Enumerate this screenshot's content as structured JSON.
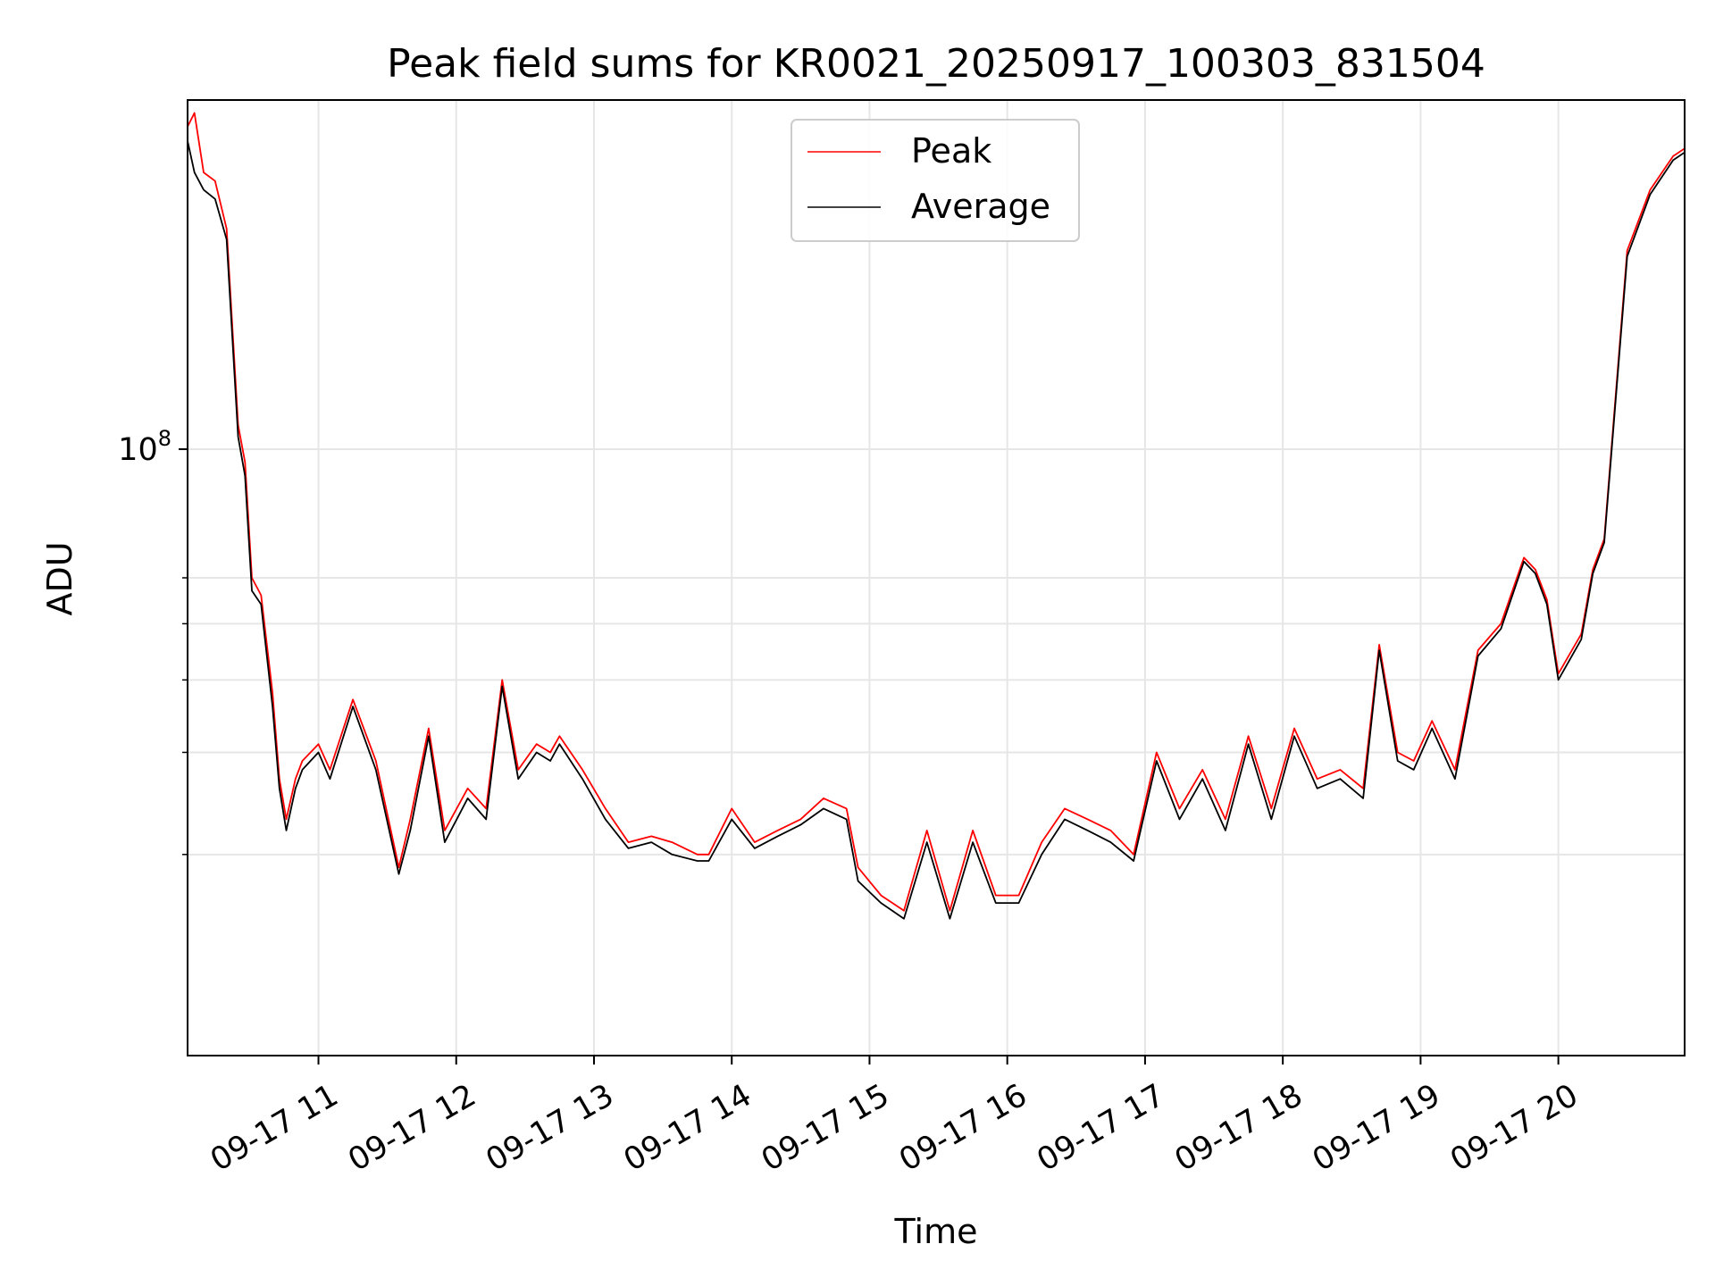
{
  "chart_data": {
    "type": "line",
    "title": "Peak field sums for KR0021_20250917_100303_831504",
    "xlabel": "Time",
    "ylabel": "ADU",
    "yscale": "log",
    "ylim": [
      9000000,
      400000000
    ],
    "xlim": [
      "2025-09-17 10:03",
      "2025-09-17 20:55"
    ],
    "y_major_tick_labels": [
      {
        "base": "10",
        "exp": "8",
        "value": 100000000
      }
    ],
    "y_minor_ticks": [
      20000000,
      30000000,
      40000000,
      50000000,
      60000000
    ],
    "x_tick_labels": [
      "09-17 11",
      "09-17 12",
      "09-17 13",
      "09-17 14",
      "09-17 15",
      "09-17 16",
      "09-17 17",
      "09-17 18",
      "09-17 19",
      "09-17 20"
    ],
    "x_tick_values": [
      "2025-09-17 11:00",
      "2025-09-17 12:00",
      "2025-09-17 13:00",
      "2025-09-17 14:00",
      "2025-09-17 15:00",
      "2025-09-17 16:00",
      "2025-09-17 17:00",
      "2025-09-17 18:00",
      "2025-09-17 19:00",
      "2025-09-17 20:00"
    ],
    "grid": true,
    "legend": {
      "position": "top-center"
    },
    "series": [
      {
        "name": "Peak",
        "color": "#ff0000",
        "x": [
          "2025-09-17 10:03",
          "2025-09-17 10:06",
          "2025-09-17 10:10",
          "2025-09-17 10:15",
          "2025-09-17 10:20",
          "2025-09-17 10:25",
          "2025-09-17 10:28",
          "2025-09-17 10:31",
          "2025-09-17 10:35",
          "2025-09-17 10:40",
          "2025-09-17 10:43",
          "2025-09-17 10:46",
          "2025-09-17 10:50",
          "2025-09-17 10:53",
          "2025-09-17 11:00",
          "2025-09-17 11:05",
          "2025-09-17 11:15",
          "2025-09-17 11:25",
          "2025-09-17 11:35",
          "2025-09-17 11:40",
          "2025-09-17 11:48",
          "2025-09-17 11:55",
          "2025-09-17 12:05",
          "2025-09-17 12:13",
          "2025-09-17 12:20",
          "2025-09-17 12:27",
          "2025-09-17 12:35",
          "2025-09-17 12:41",
          "2025-09-17 12:45",
          "2025-09-17 12:55",
          "2025-09-17 13:05",
          "2025-09-17 13:15",
          "2025-09-17 13:25",
          "2025-09-17 13:34",
          "2025-09-17 13:45",
          "2025-09-17 13:50",
          "2025-09-17 14:00",
          "2025-09-17 14:10",
          "2025-09-17 14:20",
          "2025-09-17 14:30",
          "2025-09-17 14:40",
          "2025-09-17 14:50",
          "2025-09-17 14:55",
          "2025-09-17 15:05",
          "2025-09-17 15:15",
          "2025-09-17 15:25",
          "2025-09-17 15:35",
          "2025-09-17 15:45",
          "2025-09-17 15:55",
          "2025-09-17 16:05",
          "2025-09-17 16:15",
          "2025-09-17 16:25",
          "2025-09-17 16:35",
          "2025-09-17 16:45",
          "2025-09-17 16:55",
          "2025-09-17 17:05",
          "2025-09-17 17:15",
          "2025-09-17 17:25",
          "2025-09-17 17:35",
          "2025-09-17 17:45",
          "2025-09-17 17:55",
          "2025-09-17 18:05",
          "2025-09-17 18:15",
          "2025-09-17 18:25",
          "2025-09-17 18:35",
          "2025-09-17 18:42",
          "2025-09-17 18:50",
          "2025-09-17 18:57",
          "2025-09-17 19:05",
          "2025-09-17 19:15",
          "2025-09-17 19:25",
          "2025-09-17 19:35",
          "2025-09-17 19:45",
          "2025-09-17 19:50",
          "2025-09-17 19:55",
          "2025-09-17 20:00",
          "2025-09-17 20:10",
          "2025-09-17 20:15",
          "2025-09-17 20:20",
          "2025-09-17 20:30",
          "2025-09-17 20:40",
          "2025-09-17 20:50",
          "2025-09-17 20:55"
        ],
        "y": [
          360000000,
          380000000,
          300000000,
          290000000,
          240000000,
          110000000,
          95000000,
          60000000,
          56000000,
          38000000,
          27000000,
          23000000,
          27000000,
          29000000,
          31000000,
          28000000,
          37000000,
          29000000,
          19000000,
          23000000,
          33000000,
          22000000,
          26000000,
          24000000,
          40000000,
          28000000,
          31000000,
          30000000,
          32000000,
          28000000,
          24000000,
          21000000,
          21500000,
          21000000,
          20000000,
          20000000,
          24000000,
          21000000,
          22000000,
          23000000,
          25000000,
          24000000,
          19000000,
          17000000,
          16000000,
          22000000,
          16000000,
          22000000,
          17000000,
          17000000,
          21000000,
          24000000,
          23000000,
          22000000,
          20000000,
          30000000,
          24000000,
          28000000,
          23000000,
          32000000,
          24000000,
          33000000,
          27000000,
          28000000,
          26000000,
          46000000,
          30000000,
          29000000,
          34000000,
          28000000,
          45000000,
          50000000,
          65000000,
          62000000,
          55000000,
          41000000,
          48000000,
          62000000,
          70000000,
          220000000,
          280000000,
          320000000,
          330000000
        ]
      },
      {
        "name": "Average",
        "color": "#000000",
        "x": [
          "2025-09-17 10:03",
          "2025-09-17 10:06",
          "2025-09-17 10:10",
          "2025-09-17 10:15",
          "2025-09-17 10:20",
          "2025-09-17 10:25",
          "2025-09-17 10:28",
          "2025-09-17 10:31",
          "2025-09-17 10:35",
          "2025-09-17 10:40",
          "2025-09-17 10:43",
          "2025-09-17 10:46",
          "2025-09-17 10:50",
          "2025-09-17 10:53",
          "2025-09-17 11:00",
          "2025-09-17 11:05",
          "2025-09-17 11:15",
          "2025-09-17 11:25",
          "2025-09-17 11:35",
          "2025-09-17 11:40",
          "2025-09-17 11:48",
          "2025-09-17 11:55",
          "2025-09-17 12:05",
          "2025-09-17 12:13",
          "2025-09-17 12:20",
          "2025-09-17 12:27",
          "2025-09-17 12:35",
          "2025-09-17 12:41",
          "2025-09-17 12:45",
          "2025-09-17 12:55",
          "2025-09-17 13:05",
          "2025-09-17 13:15",
          "2025-09-17 13:25",
          "2025-09-17 13:34",
          "2025-09-17 13:45",
          "2025-09-17 13:50",
          "2025-09-17 14:00",
          "2025-09-17 14:10",
          "2025-09-17 14:20",
          "2025-09-17 14:30",
          "2025-09-17 14:40",
          "2025-09-17 14:50",
          "2025-09-17 14:55",
          "2025-09-17 15:05",
          "2025-09-17 15:15",
          "2025-09-17 15:25",
          "2025-09-17 15:35",
          "2025-09-17 15:45",
          "2025-09-17 15:55",
          "2025-09-17 16:05",
          "2025-09-17 16:15",
          "2025-09-17 16:25",
          "2025-09-17 16:35",
          "2025-09-17 16:45",
          "2025-09-17 16:55",
          "2025-09-17 17:05",
          "2025-09-17 17:15",
          "2025-09-17 17:25",
          "2025-09-17 17:35",
          "2025-09-17 17:45",
          "2025-09-17 17:55",
          "2025-09-17 18:05",
          "2025-09-17 18:15",
          "2025-09-17 18:25",
          "2025-09-17 18:35",
          "2025-09-17 18:42",
          "2025-09-17 18:50",
          "2025-09-17 18:57",
          "2025-09-17 19:05",
          "2025-09-17 19:15",
          "2025-09-17 19:25",
          "2025-09-17 19:35",
          "2025-09-17 19:45",
          "2025-09-17 19:50",
          "2025-09-17 19:55",
          "2025-09-17 20:00",
          "2025-09-17 20:10",
          "2025-09-17 20:15",
          "2025-09-17 20:20",
          "2025-09-17 20:30",
          "2025-09-17 20:40",
          "2025-09-17 20:50",
          "2025-09-17 20:55"
        ],
        "y": [
          340000000,
          300000000,
          280000000,
          270000000,
          230000000,
          105000000,
          90000000,
          57000000,
          54000000,
          36000000,
          26000000,
          22000000,
          26000000,
          28000000,
          30000000,
          27000000,
          36000000,
          28000000,
          18500000,
          22000000,
          32000000,
          21000000,
          25000000,
          23000000,
          39000000,
          27000000,
          30000000,
          29000000,
          31000000,
          27000000,
          23000000,
          20500000,
          21000000,
          20000000,
          19500000,
          19500000,
          23000000,
          20500000,
          21500000,
          22500000,
          24000000,
          23000000,
          18000000,
          16500000,
          15500000,
          21000000,
          15500000,
          21000000,
          16500000,
          16500000,
          20000000,
          23000000,
          22000000,
          21000000,
          19500000,
          29000000,
          23000000,
          27000000,
          22000000,
          31000000,
          23000000,
          32000000,
          26000000,
          27000000,
          25000000,
          45000000,
          29000000,
          28000000,
          33000000,
          27000000,
          44000000,
          49000000,
          64000000,
          61000000,
          54000000,
          40000000,
          47000000,
          61000000,
          69000000,
          215000000,
          275000000,
          315000000,
          325000000
        ]
      }
    ]
  }
}
